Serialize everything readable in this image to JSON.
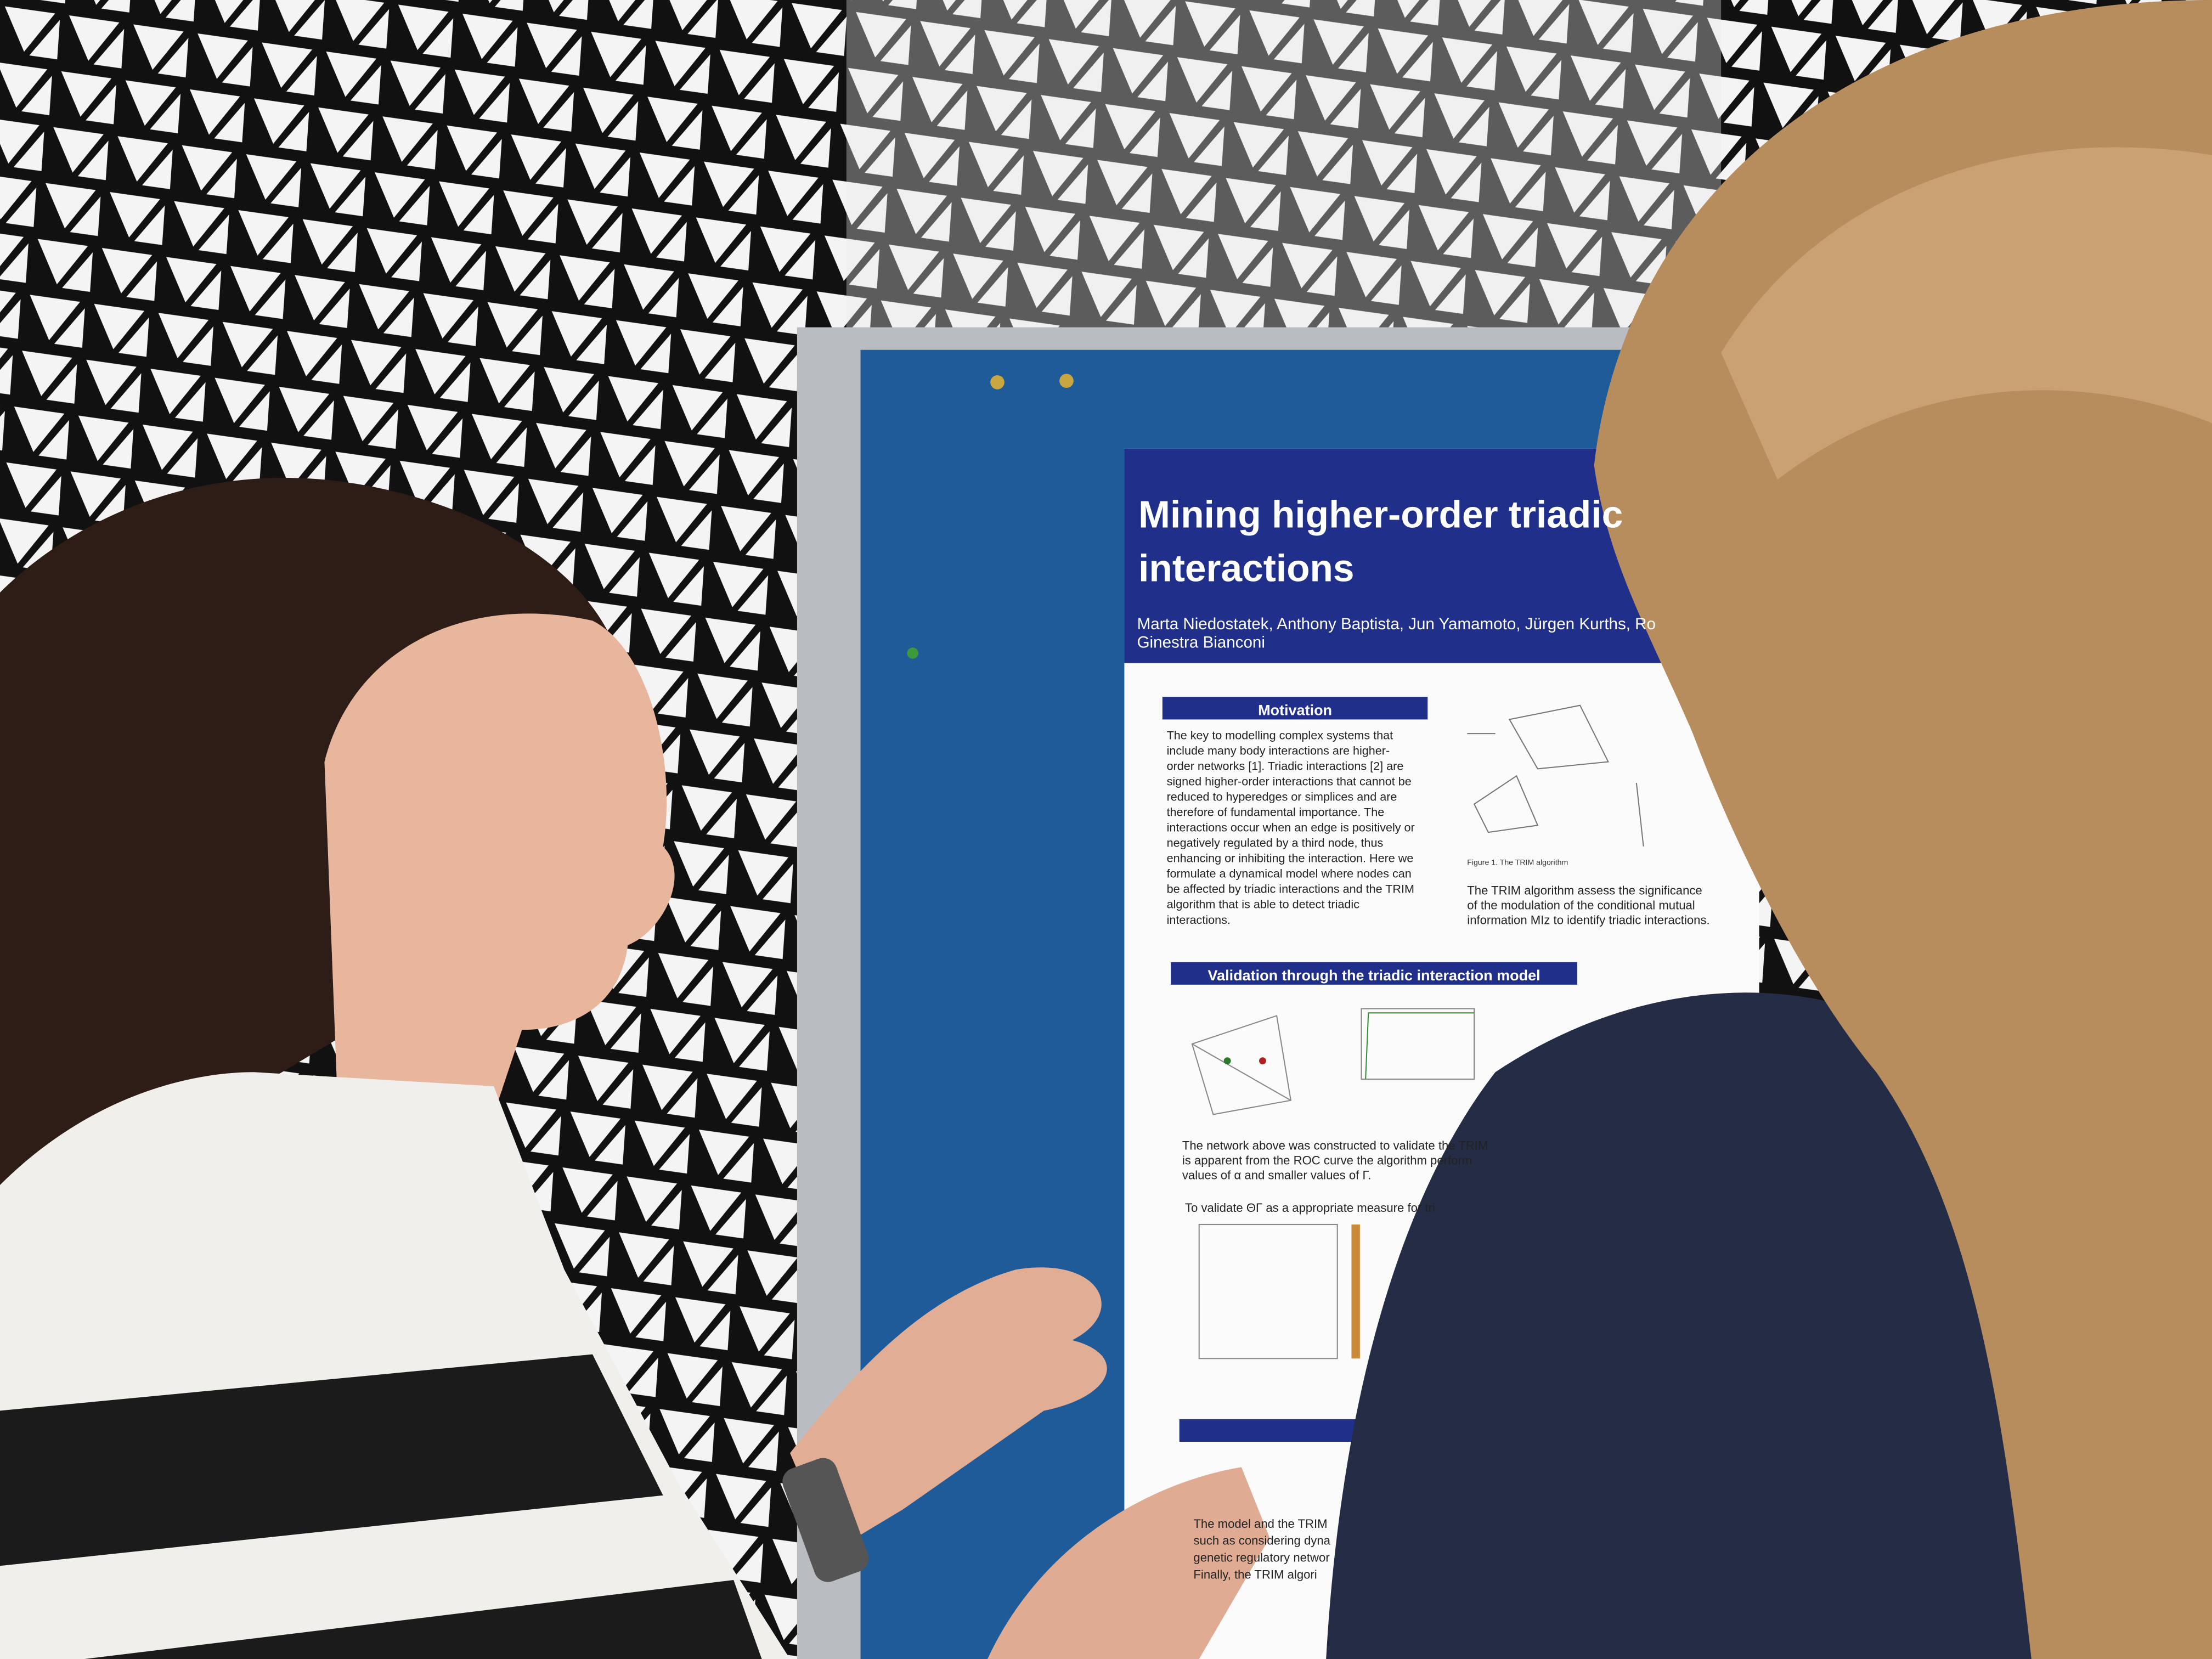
{
  "poster": {
    "title_lines": [
      "Mining higher-order triadic",
      "interactions"
    ],
    "authors": [
      "Marta Niedostatek, Anthony Baptista, Jun Yamamoto, Jürgen Kurths, Ro",
      "Ginestra Bianconi"
    ],
    "motivation": {
      "heading": "Motivation",
      "lines": [
        "The key to modelling complex systems that",
        "include many body interactions are higher-",
        "order networks [1]. Triadic interactions [2] are",
        "signed higher-order interactions that cannot be",
        "reduced to hyperedges or simplices and are",
        "therefore of fundamental importance. The",
        "interactions occur when an edge is positively or",
        "negatively regulated by a third node, thus",
        "enhancing or inhibiting the interaction. Here we",
        "formulate a dynamical model where nodes can",
        "be affected by triadic interactions and the TRIM",
        "algorithm that is able to detect triadic",
        "interactions."
      ]
    },
    "figure_caption": "Figure 1. The TRIM algorithm",
    "trim_text": [
      "The TRIM algorithm assess the significance",
      "of the modulation of the conditional mutual",
      "information MIz to identify triadic interactions."
    ],
    "validation": {
      "heading": "Validation through the triadic interaction model",
      "lines": [
        "The network above was constructed to validate the TRIM",
        "is apparent from the ROC curve the algorithm perform",
        "values of α and smaller values of Γ."
      ],
      "validate_line": "To validate ΘΓ as a appropriate measure for tri"
    },
    "conclusion_lines": [
      "The model and the TRIM",
      "such as considering dyna",
      "genetic regulatory networ",
      "Finally, the TRIM algori"
    ]
  }
}
